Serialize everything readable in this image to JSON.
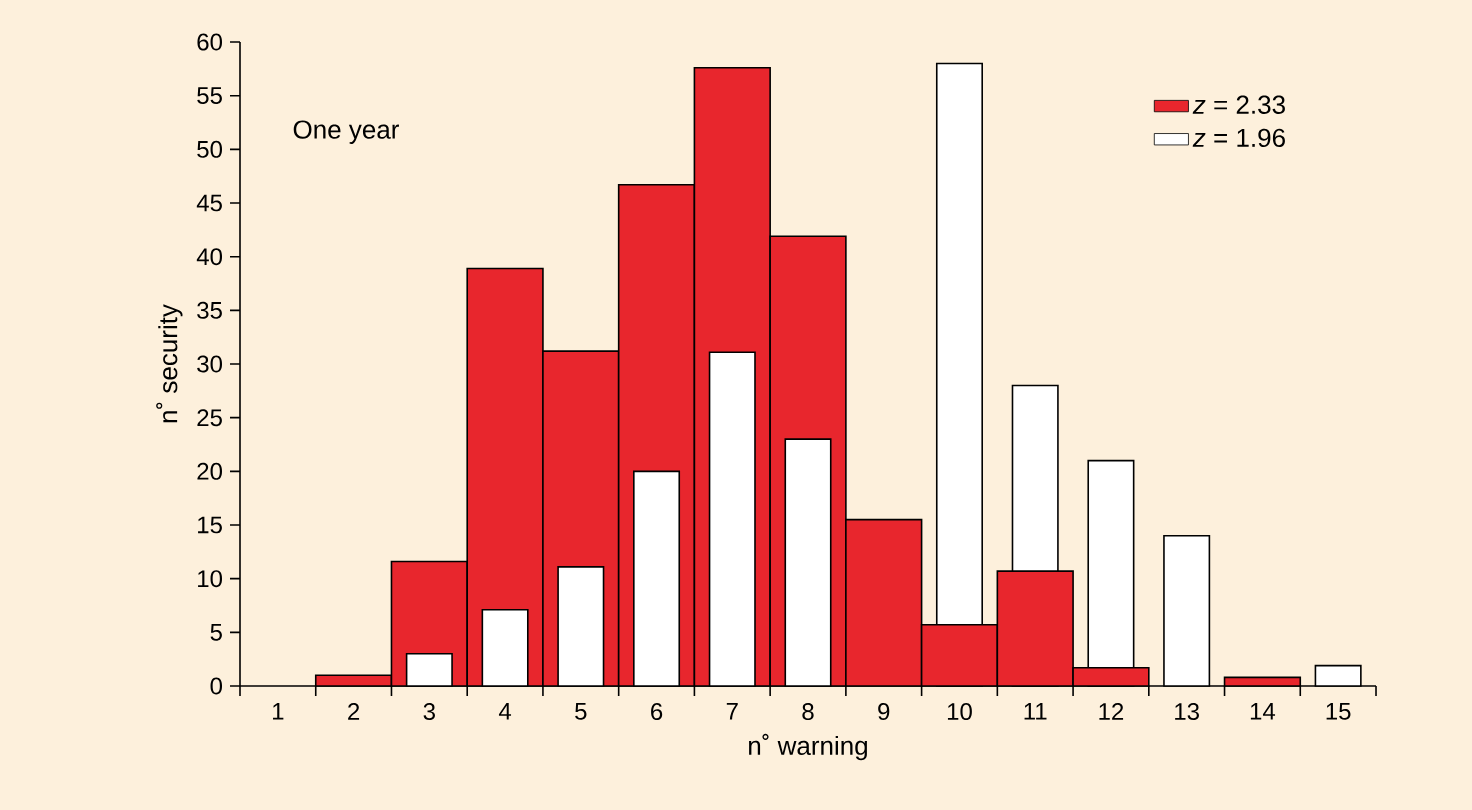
{
  "chart_data": {
    "type": "bar",
    "xlabel": "n˚ warning",
    "ylabel": "n˚ security",
    "categories": [
      "1",
      "2",
      "3",
      "4",
      "5",
      "6",
      "7",
      "8",
      "9",
      "10",
      "11",
      "12",
      "13",
      "14",
      "15"
    ],
    "series": [
      {
        "name": "*z* = 2.33",
        "color": "#e8262d",
        "values": [
          0,
          1,
          11.6,
          38.9,
          31.2,
          46.7,
          57.6,
          41.9,
          15.5,
          5.7,
          10.7,
          1.7,
          0,
          0.8,
          0
        ]
      },
      {
        "name": "*z* = 1.96",
        "color": "#ffffff",
        "values": [
          0,
          0,
          3,
          7.1,
          11.1,
          20,
          31.1,
          23,
          0,
          58,
          28,
          21,
          14,
          0,
          1.9
        ]
      }
    ],
    "ylim": [
      0,
      60
    ],
    "yticks": [
      0,
      5,
      10,
      15,
      20,
      25,
      30,
      35,
      40,
      45,
      50,
      55,
      60
    ],
    "legend": "top right",
    "annotations": [
      "One year"
    ]
  }
}
